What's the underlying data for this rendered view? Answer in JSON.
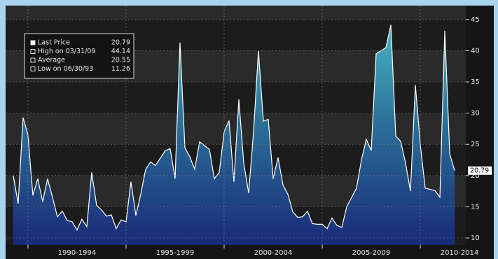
{
  "chart_data": {
    "type": "area",
    "legend": [
      {
        "label": "Last Price",
        "value": 20.79
      },
      {
        "label": "High on 03/31/09",
        "value": 44.14
      },
      {
        "label": "Average",
        "value": 20.55
      },
      {
        "label": "Low on 06/30/93",
        "value": 11.26
      }
    ],
    "x": [
      1989.25,
      1989.5,
      1989.75,
      1990,
      1990.25,
      1990.5,
      1990.75,
      1991,
      1991.25,
      1991.5,
      1991.75,
      1992,
      1992.25,
      1992.5,
      1992.75,
      1993,
      1993.25,
      1993.5,
      1993.75,
      1994,
      1994.25,
      1994.5,
      1994.75,
      1995,
      1995.25,
      1995.5,
      1995.75,
      1996,
      1996.25,
      1996.5,
      1996.75,
      1997,
      1997.25,
      1997.5,
      1997.75,
      1998,
      1998.25,
      1998.5,
      1998.75,
      1999,
      1999.25,
      1999.5,
      1999.75,
      2000,
      2000.25,
      2000.5,
      2000.75,
      2001,
      2001.25,
      2001.5,
      2001.75,
      2002,
      2002.25,
      2002.5,
      2002.75,
      2003,
      2003.25,
      2003.5,
      2003.75,
      2004,
      2004.25,
      2004.5,
      2004.75,
      2005,
      2005.25,
      2005.5,
      2005.75,
      2006,
      2006.25,
      2006.5,
      2006.75,
      2007,
      2007.25,
      2007.5,
      2007.75,
      2008,
      2008.25,
      2008.5,
      2008.75,
      2009,
      2009.25,
      2009.5,
      2009.75,
      2010,
      2010.25,
      2010.5,
      2010.75,
      2011,
      2011.25,
      2011.5,
      2011.75
    ],
    "values": [
      20,
      15.5,
      29.3,
      26.5,
      16.8,
      19.5,
      15.8,
      19.5,
      16.5,
      13.4,
      14.3,
      12.8,
      12.6,
      11.3,
      13,
      11.8,
      20.5,
      15.2,
      14.5,
      13.5,
      13.7,
      11.5,
      12.9,
      12.6,
      19,
      13.6,
      17,
      21,
      22.2,
      21.6,
      22.8,
      24,
      24.3,
      19.5,
      41.3,
      24.5,
      23,
      21,
      25.4,
      24.8,
      24.2,
      19.5,
      20.5,
      27,
      28.8,
      19,
      32.2,
      22,
      17.2,
      27,
      40,
      28.7,
      29,
      19.5,
      22.9,
      18.5,
      17,
      14.2,
      13.3,
      13.4,
      14.3,
      12.3,
      12.2,
      12.2,
      11.5,
      13.2,
      12,
      11.7,
      15,
      16.5,
      18,
      22.5,
      25.8,
      24,
      39.5,
      40,
      40.5,
      44.14,
      26.3,
      25.5,
      22,
      17.5,
      34.5,
      25,
      18,
      17.8,
      17.6,
      16.5,
      43.2,
      23.5,
      20.79
    ],
    "color": "#ffffff",
    "xlim": [
      1988.86,
      2012.32
    ],
    "xgrid": [
      1990,
      1995,
      2000,
      2005,
      2010
    ],
    "xticks": [
      {
        "value": 1992.5,
        "label": "1990-1994"
      },
      {
        "value": 1997.5,
        "label": "1995-1999"
      },
      {
        "value": 2002.5,
        "label": "2000-2004"
      },
      {
        "value": 2007.5,
        "label": "2005-2009"
      },
      {
        "value": 2012,
        "label": "2010-2014"
      }
    ],
    "ylim": [
      8.88,
      47.22
    ],
    "yticks": [
      10,
      15,
      20,
      25,
      30,
      35,
      40,
      45
    ],
    "grid": true
  }
}
